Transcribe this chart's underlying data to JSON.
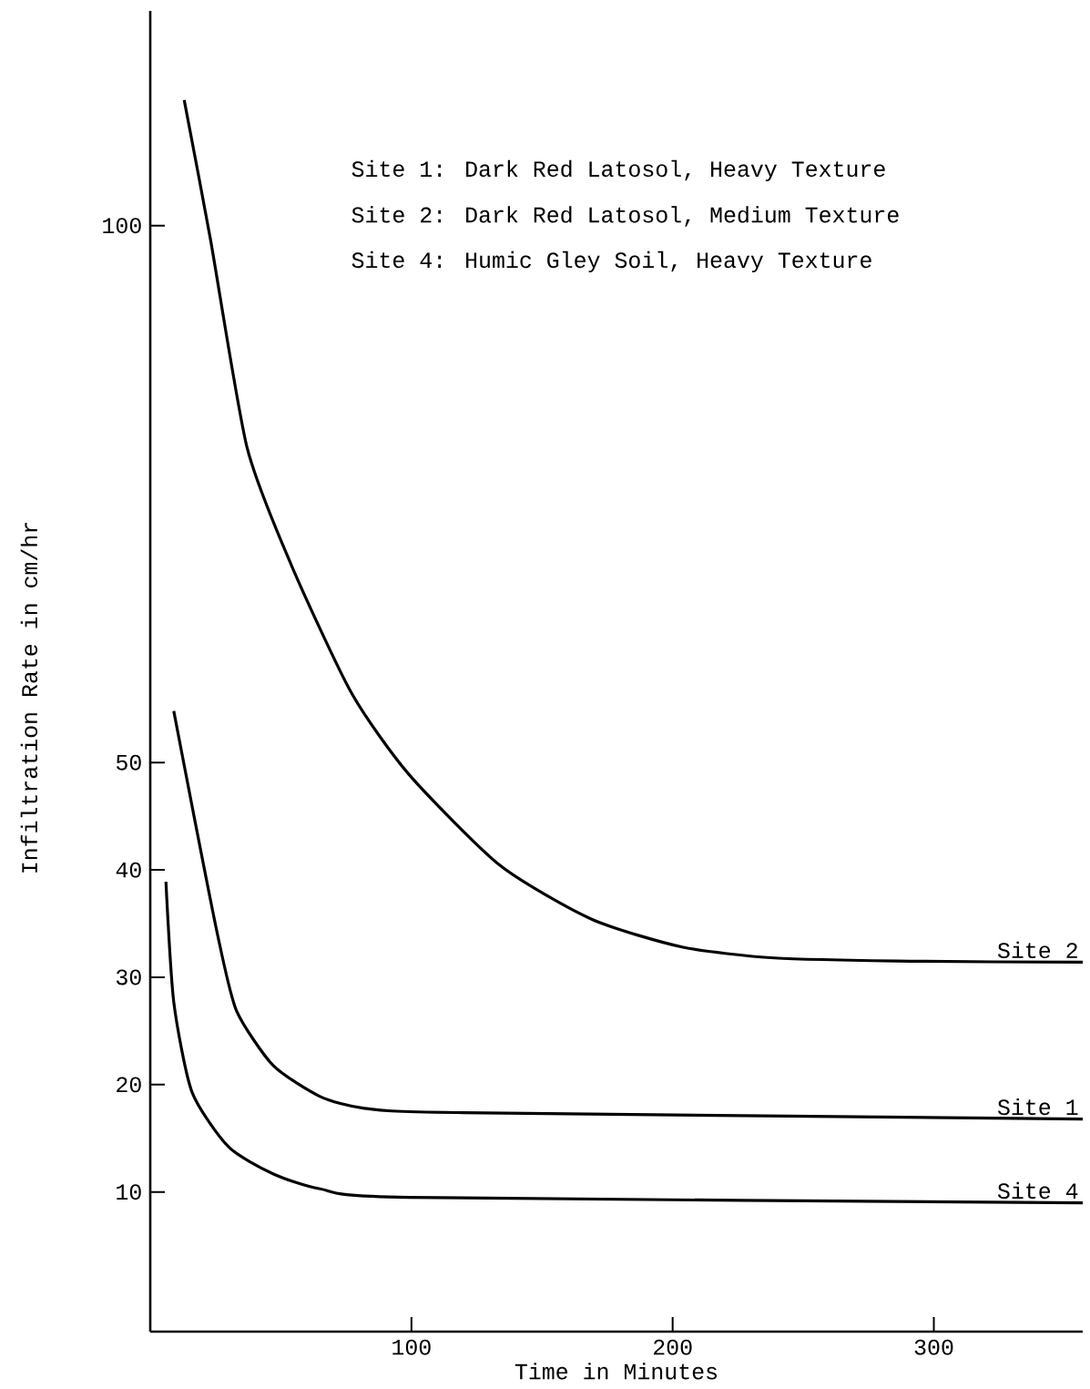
{
  "chart_data": {
    "type": "line",
    "xlabel": "Time in Minutes",
    "ylabel": "Infiltration Rate in cm/hr",
    "annotations": [
      "Site 1: Dark Red Latosol, Heavy Texture",
      "Site 2: Dark Red Latosol, Medium Texture",
      "Site 4: Humic Gley Soil, Heavy Texture"
    ],
    "xlim": [
      0,
      357
    ],
    "ylim": [
      -3,
      120
    ],
    "xticks": [
      100,
      200,
      300
    ],
    "yticks": [
      10,
      20,
      30,
      40,
      50,
      100
    ],
    "grid": false,
    "legend": false,
    "marker": "none",
    "line_style": "solid",
    "series": [
      {
        "name": "Site 2",
        "color": "#000000",
        "x": [
          13,
          23,
          37,
          54,
          77,
          99,
          134,
          169,
          204,
          239,
          291,
          357
        ],
        "values": [
          111.7,
          98.8,
          79.4,
          68.4,
          56.5,
          48.9,
          40.4,
          35.4,
          32.8,
          31.8,
          31.5,
          31.4
        ]
      },
      {
        "name": "Site 1",
        "color": "#000000",
        "x": [
          9,
          17,
          26,
          33,
          47,
          65,
          82,
          117,
          357
        ],
        "values": [
          54.8,
          44.7,
          33.7,
          26.9,
          21.8,
          18.9,
          17.8,
          17.4,
          16.8
        ]
      },
      {
        "name": "Site 4",
        "color": "#000000",
        "x": [
          6,
          9,
          16,
          30,
          47,
          65,
          99,
          357
        ],
        "values": [
          38.9,
          27.7,
          19.3,
          14.2,
          11.7,
          10.3,
          9.5,
          9.0
        ]
      }
    ]
  }
}
